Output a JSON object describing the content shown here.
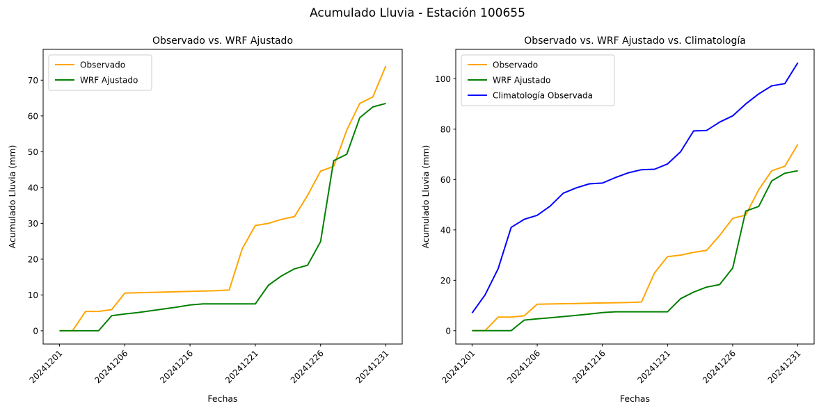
{
  "figure_title": "Acumulado Lluvia - Estación 100655",
  "colors": {
    "observado": "#FFA500",
    "wrf_ajustado": "#008000",
    "climatologia": "#0000FF",
    "axis": "#000000",
    "legend_border": "#cccccc",
    "background": "#ffffff"
  },
  "chart_data": [
    {
      "type": "line",
      "title": "Observado vs. WRF Ajustado",
      "xlabel": "Fechas",
      "ylabel": "Acumulado Lluvia (mm)",
      "grid": false,
      "legend_position": "upper-left",
      "x_tick_positions": [
        0,
        5,
        10,
        15,
        20,
        25
      ],
      "x_tick_labels": [
        "20241201",
        "20241206",
        "20241216",
        "20241221",
        "20241226",
        "20241231"
      ],
      "y_ticks": [
        0,
        10,
        20,
        30,
        40,
        50,
        60,
        70
      ],
      "xlim": [
        -1.25,
        26.25
      ],
      "ylim": [
        -3.7,
        78.6
      ],
      "n_points": 26,
      "series": [
        {
          "name": "Observado",
          "color": "#FFA500",
          "values": [
            0,
            0,
            5.4,
            5.4,
            5.9,
            10.5,
            10.6,
            10.7,
            10.8,
            10.9,
            11.0,
            11.1,
            11.2,
            11.4,
            22.9,
            29.4,
            30.0,
            31.1,
            31.9,
            37.8,
            44.6,
            45.9,
            56.0,
            63.5,
            65.3,
            74.0
          ]
        },
        {
          "name": "WRF Ajustado",
          "color": "#008000",
          "values": [
            0,
            0,
            0,
            0,
            4.2,
            4.7,
            5.1,
            5.6,
            6.1,
            6.6,
            7.2,
            7.5,
            7.5,
            7.5,
            7.5,
            7.5,
            12.7,
            15.3,
            17.3,
            18.3,
            24.9,
            47.5,
            49.3,
            59.5,
            62.5,
            63.5
          ]
        }
      ]
    },
    {
      "type": "line",
      "title": "Observado vs. WRF Ajustado vs. Climatología",
      "xlabel": "Fechas",
      "ylabel": "Acumulado Lluvia (mm)",
      "grid": false,
      "legend_position": "upper-left",
      "x_tick_positions": [
        0,
        5,
        10,
        15,
        20,
        25
      ],
      "x_tick_labels": [
        "20241201",
        "20241206",
        "20241216",
        "20241221",
        "20241226",
        "20241231"
      ],
      "y_ticks": [
        0,
        20,
        40,
        60,
        80,
        100
      ],
      "xlim": [
        -1.25,
        26.25
      ],
      "ylim": [
        -5.3,
        111.7
      ],
      "n_points": 26,
      "series": [
        {
          "name": "Observado",
          "color": "#FFA500",
          "values": [
            0,
            0,
            5.4,
            5.4,
            5.9,
            10.5,
            10.6,
            10.7,
            10.8,
            10.9,
            11.0,
            11.1,
            11.2,
            11.4,
            22.9,
            29.4,
            30.0,
            31.1,
            31.9,
            37.8,
            44.6,
            45.9,
            56.0,
            63.5,
            65.3,
            74.0
          ]
        },
        {
          "name": "WRF Ajustado",
          "color": "#008000",
          "values": [
            0,
            0,
            0,
            0,
            4.2,
            4.7,
            5.1,
            5.6,
            6.1,
            6.6,
            7.2,
            7.5,
            7.5,
            7.5,
            7.5,
            7.5,
            12.7,
            15.3,
            17.3,
            18.3,
            24.9,
            47.5,
            49.3,
            59.5,
            62.5,
            63.5
          ]
        },
        {
          "name": "Climatología Observada",
          "color": "#0000FF",
          "values": [
            7.0,
            14.2,
            24.6,
            41.0,
            44.2,
            45.8,
            49.5,
            54.6,
            56.7,
            58.3,
            58.6,
            60.8,
            62.7,
            63.9,
            64.1,
            66.2,
            71.0,
            79.3,
            79.5,
            82.8,
            85.3,
            90.0,
            94.0,
            97.2,
            98.1,
            106.4
          ]
        }
      ]
    }
  ]
}
